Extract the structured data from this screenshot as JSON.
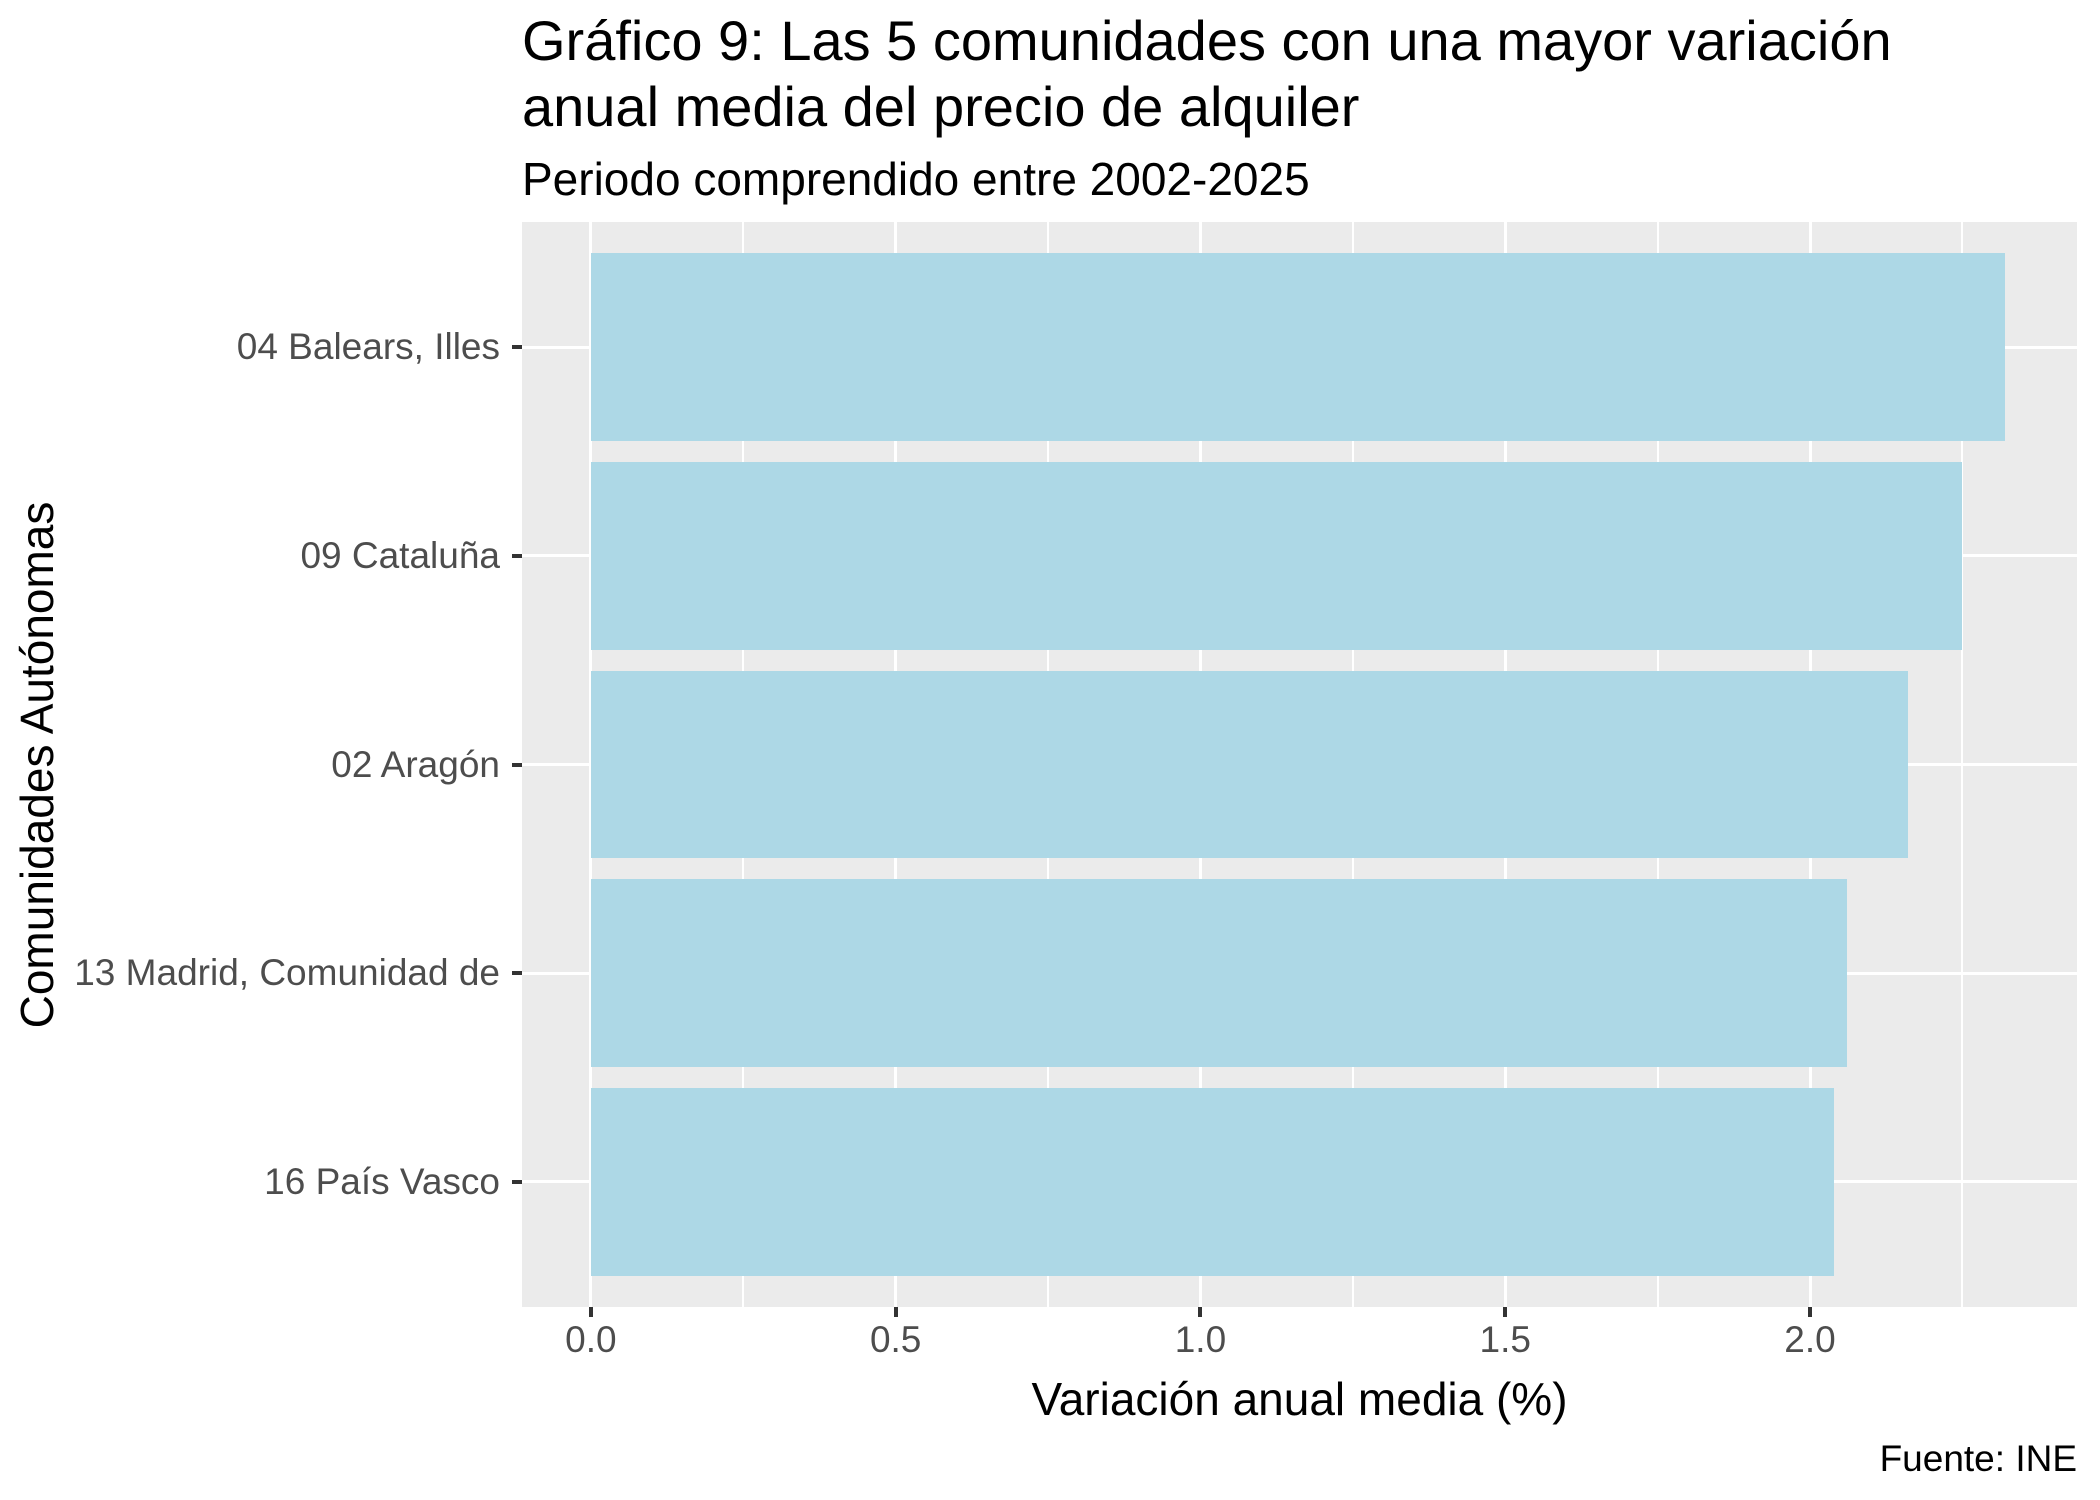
{
  "chart_data": {
    "type": "bar",
    "orientation": "horizontal",
    "title_lines": [
      "Gráfico 9: Las 5 comunidades con una mayor variación",
      "anual media del precio de alquiler"
    ],
    "subtitle": "Periodo comprendido entre 2002-2025",
    "xlabel": "Variación anual media (%)",
    "ylabel": "Comunidades Autónomas",
    "caption": "Fuente: INE",
    "categories": [
      "04 Balears, Illes",
      "09 Cataluña",
      "02 Aragón",
      "13 Madrid, Comunidad de",
      "16 País Vasco"
    ],
    "values": [
      2.32,
      2.25,
      2.16,
      2.06,
      2.04
    ],
    "x_ticks": [
      {
        "label": "0.0",
        "value": 0.0
      },
      {
        "label": "0.5",
        "value": 0.5
      },
      {
        "label": "1.0",
        "value": 1.0
      },
      {
        "label": "1.5",
        "value": 1.5
      },
      {
        "label": "2.0",
        "value": 2.0
      }
    ],
    "x_minor_ticks": [
      0.25,
      0.75,
      1.25,
      1.75,
      2.25
    ],
    "xlim": [
      -0.113,
      2.438
    ],
    "grid": "major-and-minor, white on gray panel",
    "legend": "none",
    "colors": {
      "bar_fill": "#ADD8E6",
      "panel_background": "#EBEBEB",
      "gridline": "#FFFFFF",
      "tick_mark": "#333333",
      "axis_text": "#4D4D4D",
      "title_text": "#000000"
    }
  }
}
